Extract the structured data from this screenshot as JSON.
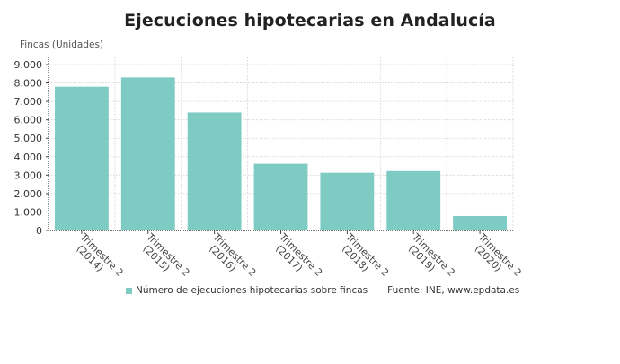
{
  "chart_data": {
    "type": "bar",
    "title": "Ejecuciones hipotecarias en Andalucía",
    "ylabel": "Fincas (Unidades)",
    "xlabel": "",
    "categories": [
      "Trimestre 2 (2014)",
      "Trimestre 2 (2015)",
      "Trimestre 2 (2016)",
      "Trimestre 2 (2017)",
      "Trimestre 2 (2018)",
      "Trimestre 2 (2019)",
      "Trimestre 2 (2020)"
    ],
    "category_lines": [
      [
        "Trimestre 2",
        "(2014)"
      ],
      [
        "Trimestre 2",
        "(2015)"
      ],
      [
        "Trimestre 2",
        "(2016)"
      ],
      [
        "Trimestre 2",
        "(2017)"
      ],
      [
        "Trimestre 2",
        "(2018)"
      ],
      [
        "Trimestre 2",
        "(2019)"
      ],
      [
        "Trimestre 2",
        "(2020)"
      ]
    ],
    "series": [
      {
        "name": "Número de ejecuciones hipotecarias sobre fincas",
        "color": "#7dcbc2",
        "values": [
          7800,
          8300,
          6400,
          3620,
          3130,
          3220,
          780
        ]
      }
    ],
    "ylim": [
      0,
      9000
    ],
    "yticks": [
      0,
      1000,
      2000,
      3000,
      4000,
      5000,
      6000,
      7000,
      8000,
      9000
    ],
    "ytick_labels": [
      "0",
      "1.000",
      "2.000",
      "3.000",
      "4.000",
      "5.000",
      "6.000",
      "7.000",
      "8.000",
      "9.000"
    ],
    "grid": true,
    "legend_position": "bottom",
    "source": "Fuente: INE, www.epdata.es"
  },
  "header": {
    "title": "Ejecuciones hipotecarias en Andalucía"
  },
  "axis": {
    "y_title": "Fincas (Unidades)"
  },
  "legend": {
    "label": "Número de ejecuciones hipotecarias sobre fincas",
    "source": "Fuente: INE, www.epdata.es"
  },
  "colors": {
    "bar": "#7dcbc2",
    "grid": "#d0d0d0",
    "axis": "#444444"
  }
}
